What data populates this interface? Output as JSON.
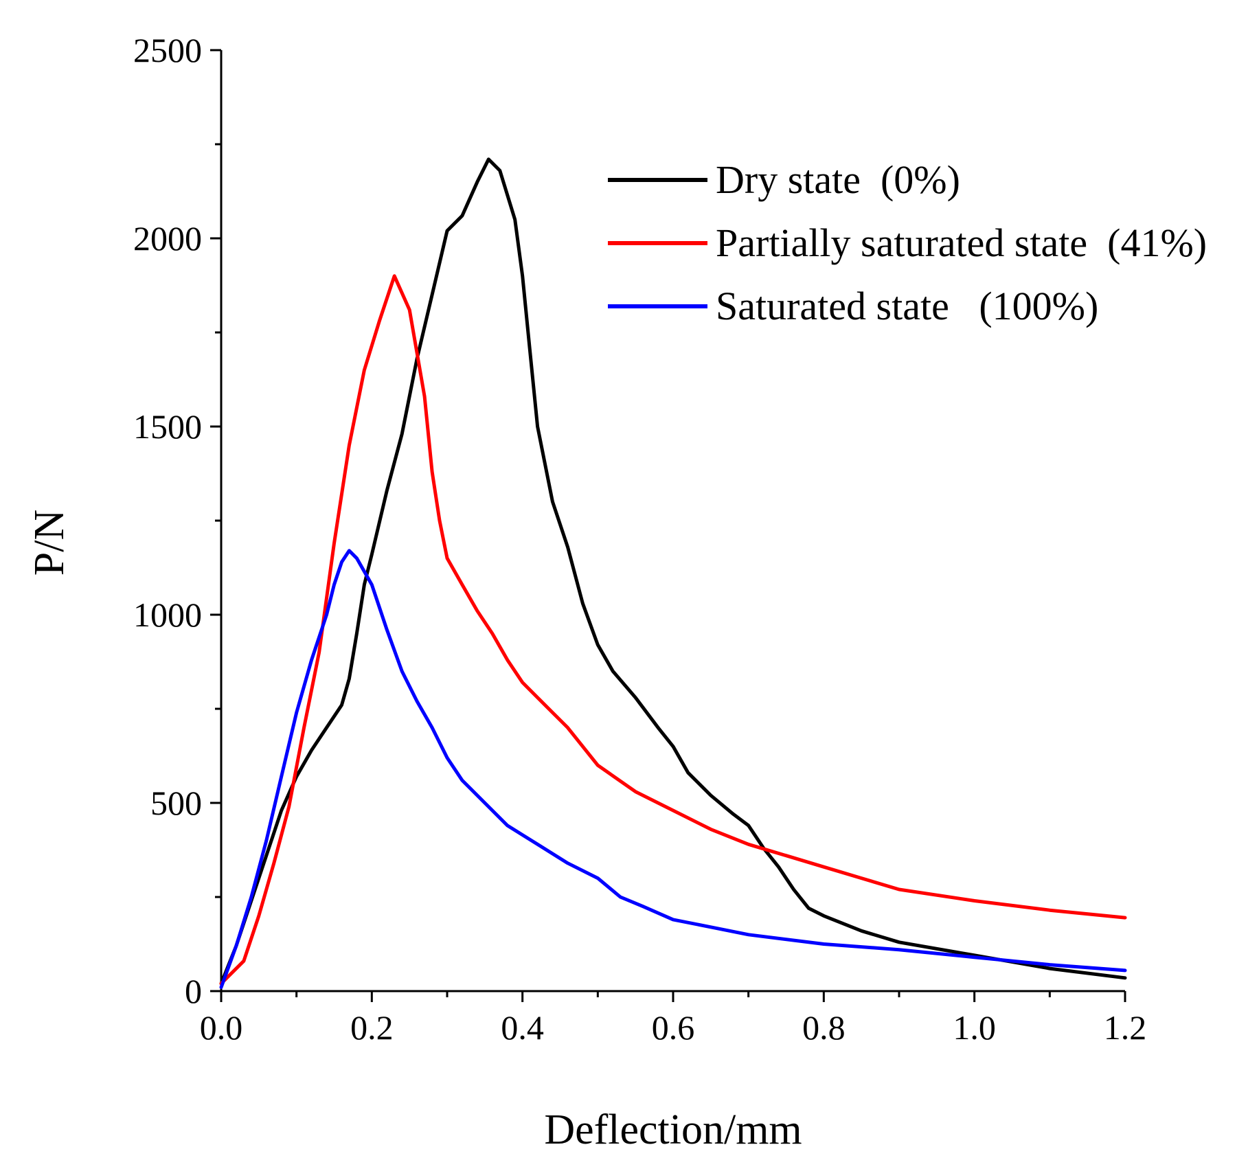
{
  "chart_data": {
    "type": "line",
    "title": "",
    "xlabel": "Deflection/mm",
    "ylabel": "P/N",
    "xlim": [
      0,
      1.2
    ],
    "ylim": [
      0,
      2500
    ],
    "x_ticks": [
      "0.0",
      "0.2",
      "0.4",
      "0.6",
      "0.8",
      "1.0",
      "1.2"
    ],
    "y_ticks": [
      "0",
      "500",
      "1000",
      "1500",
      "2000",
      "2500"
    ],
    "x_tick_values": [
      0,
      0.2,
      0.4,
      0.6,
      0.8,
      1.0,
      1.2
    ],
    "y_tick_values": [
      0,
      500,
      1000,
      1500,
      2000,
      2500
    ],
    "x_minor_step": 0.1,
    "y_minor_step": 250,
    "grid": false,
    "legend_position": "top-right",
    "series": [
      {
        "name": "Dry state  (0%)",
        "color": "#000000",
        "x": [
          0,
          0.02,
          0.05,
          0.08,
          0.1,
          0.12,
          0.14,
          0.16,
          0.17,
          0.18,
          0.19,
          0.2,
          0.22,
          0.24,
          0.26,
          0.28,
          0.3,
          0.32,
          0.34,
          0.355,
          0.37,
          0.39,
          0.4,
          0.41,
          0.42,
          0.44,
          0.46,
          0.48,
          0.5,
          0.52,
          0.55,
          0.58,
          0.6,
          0.62,
          0.65,
          0.68,
          0.7,
          0.72,
          0.74,
          0.76,
          0.78,
          0.8,
          0.85,
          0.9,
          1.0,
          1.1,
          1.2
        ],
        "y": [
          20,
          120,
          300,
          480,
          570,
          640,
          700,
          760,
          830,
          950,
          1080,
          1160,
          1330,
          1480,
          1680,
          1850,
          2020,
          2060,
          2150,
          2210,
          2180,
          2050,
          1900,
          1700,
          1500,
          1300,
          1180,
          1030,
          920,
          850,
          780,
          700,
          650,
          580,
          520,
          470,
          440,
          380,
          330,
          270,
          220,
          200,
          160,
          130,
          95,
          60,
          35
        ]
      },
      {
        "name": "Partially saturated state  (41%)",
        "color": "#ff0000",
        "x": [
          0,
          0.03,
          0.05,
          0.07,
          0.09,
          0.11,
          0.13,
          0.15,
          0.17,
          0.19,
          0.21,
          0.23,
          0.25,
          0.27,
          0.28,
          0.29,
          0.3,
          0.32,
          0.34,
          0.36,
          0.38,
          0.4,
          0.42,
          0.44,
          0.46,
          0.48,
          0.5,
          0.55,
          0.6,
          0.65,
          0.7,
          0.75,
          0.8,
          0.85,
          0.9,
          1.0,
          1.1,
          1.2
        ],
        "y": [
          20,
          80,
          200,
          340,
          490,
          700,
          900,
          1190,
          1450,
          1650,
          1780,
          1900,
          1810,
          1580,
          1380,
          1250,
          1150,
          1080,
          1010,
          950,
          880,
          820,
          780,
          740,
          700,
          650,
          600,
          530,
          480,
          430,
          390,
          360,
          330,
          300,
          270,
          240,
          215,
          195
        ]
      },
      {
        "name": "Saturated state   (100%)",
        "color": "#0000ff",
        "x": [
          0,
          0.02,
          0.04,
          0.06,
          0.08,
          0.1,
          0.12,
          0.14,
          0.15,
          0.16,
          0.17,
          0.18,
          0.2,
          0.22,
          0.24,
          0.26,
          0.28,
          0.3,
          0.32,
          0.35,
          0.38,
          0.42,
          0.46,
          0.5,
          0.53,
          0.56,
          0.6,
          0.65,
          0.7,
          0.8,
          0.9,
          1.0,
          1.1,
          1.2
        ],
        "y": [
          10,
          120,
          250,
          400,
          570,
          740,
          880,
          1000,
          1080,
          1140,
          1170,
          1150,
          1080,
          960,
          850,
          770,
          700,
          620,
          560,
          500,
          440,
          390,
          340,
          300,
          250,
          225,
          190,
          170,
          150,
          125,
          110,
          90,
          70,
          55
        ]
      }
    ]
  }
}
